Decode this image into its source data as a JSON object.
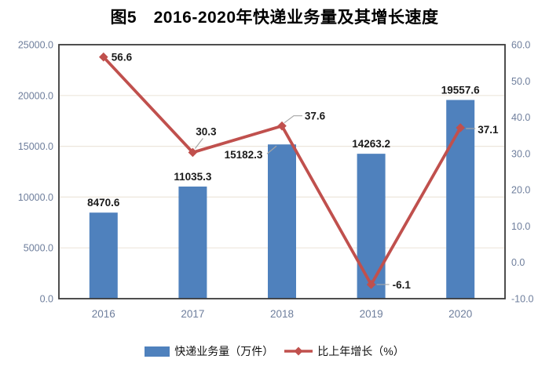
{
  "chart_data": {
    "type": "bar+line (dual axis combo)",
    "title": "图5　2016-2020年快递业务量及其增长速度",
    "categories": [
      "2016",
      "2017",
      "2018",
      "2019",
      "2020"
    ],
    "series": [
      {
        "name": "快递业务量（万件）",
        "type": "bar",
        "axis": "left",
        "color": "#4F81BD",
        "values": [
          8470.6,
          11035.3,
          15182.3,
          14263.2,
          19557.6
        ]
      },
      {
        "name": "比上年增长（%）",
        "type": "line",
        "axis": "right",
        "color": "#C0504D",
        "marker": "diamond",
        "values": [
          56.6,
          30.3,
          37.6,
          -6.1,
          37.1
        ]
      }
    ],
    "left_axis": {
      "min": 0,
      "max": 25000,
      "step": 5000,
      "tick_labels": [
        "0.0",
        "5000.0",
        "10000.0",
        "15000.0",
        "20000.0",
        "25000.0"
      ]
    },
    "right_axis": {
      "min": -10,
      "max": 60,
      "step": 10,
      "tick_labels": [
        "-10.0",
        "0.0",
        "10.0",
        "20.0",
        "30.0",
        "40.0",
        "50.0",
        "60.0"
      ]
    },
    "grid": true,
    "data_labels": true,
    "legend_position": "bottom",
    "colors": {
      "bar": "#4F81BD",
      "line": "#C0504D",
      "grid": "#EDE6DC",
      "plot_border": "#3B3B3B",
      "axis_text": "#6E7E9C",
      "data_label": "#1A1A1A",
      "leader_line": "#A6A6A6",
      "legend_text": "#111111"
    }
  }
}
